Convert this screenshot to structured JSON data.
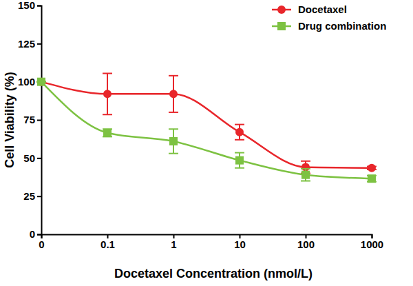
{
  "chart_data": {
    "type": "line",
    "x_label": "Docetaxel Concentration (nmol/L)",
    "y_label": "Cell Viability (%)",
    "categories": [
      "0",
      "0.1",
      "1",
      "10",
      "100",
      "1000"
    ],
    "series": [
      {
        "name": "Docetaxel",
        "color": "#e8262b",
        "marker": "circle",
        "values": [
          100,
          92,
          92,
          67,
          44,
          43.5
        ],
        "errors": [
          0,
          13.5,
          12,
          5,
          4,
          1
        ]
      },
      {
        "name": "Drug combination",
        "color": "#7dc242",
        "marker": "square",
        "values": [
          100,
          66.5,
          61,
          48.5,
          39,
          36.5
        ],
        "errors": [
          0,
          2.5,
          8,
          5,
          4,
          2
        ]
      }
    ],
    "ylim": [
      0,
      150
    ],
    "yticks": [
      0,
      25,
      50,
      75,
      100,
      125,
      150
    ],
    "legend": "top-right",
    "grid": false
  }
}
